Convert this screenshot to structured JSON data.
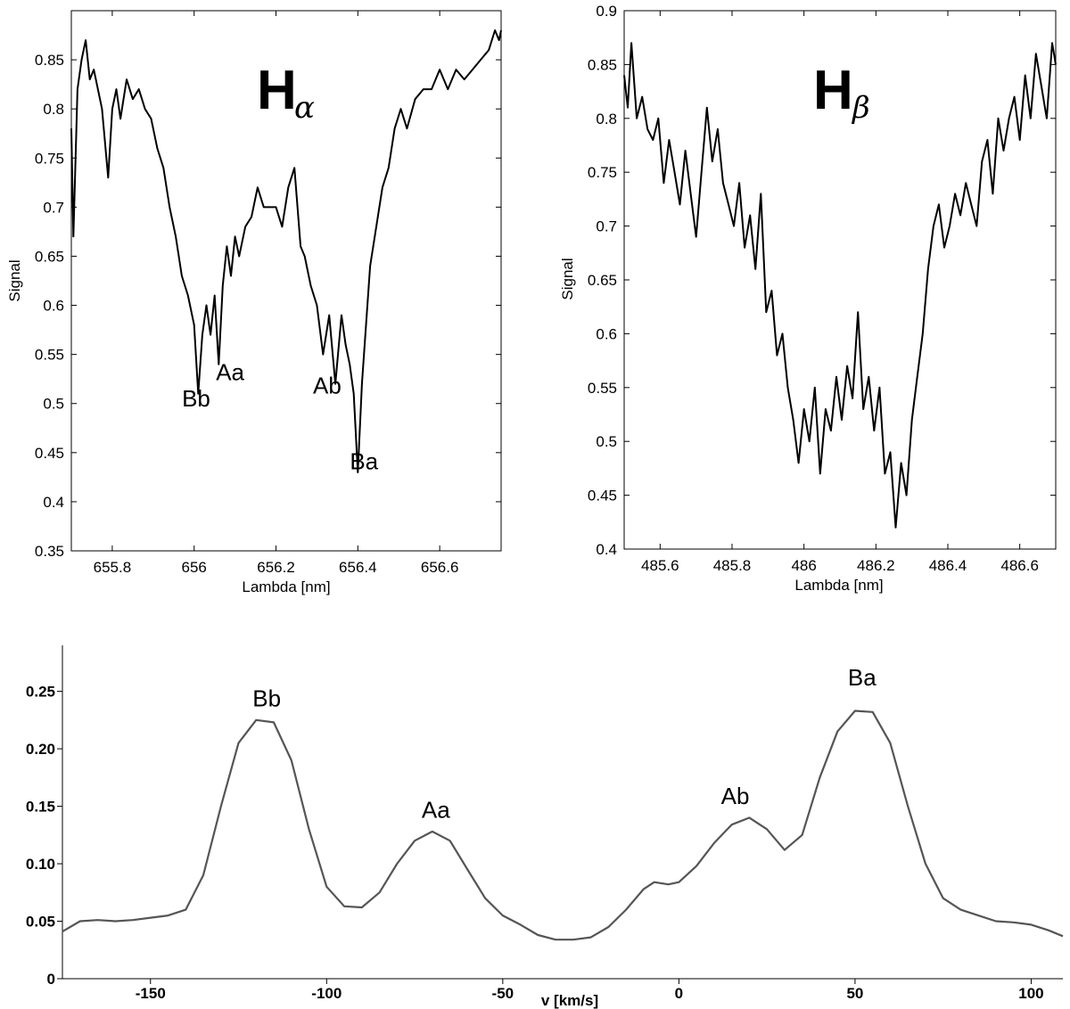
{
  "chart_data": [
    {
      "type": "line",
      "title_main": "H",
      "title_sub": "α",
      "xlabel": "Lambda [nm]",
      "ylabel": "Signal",
      "xlim": [
        655.7,
        656.75
      ],
      "ylim": [
        0.35,
        0.9
      ],
      "xticks": [
        655.8,
        656,
        656.2,
        656.4,
        656.6
      ],
      "xtick_labels": [
        "655.8",
        "656",
        "656.2",
        "656.4",
        "656.6"
      ],
      "yticks": [
        0.35,
        0.4,
        0.45,
        0.5,
        0.55,
        0.6,
        0.65,
        0.7,
        0.75,
        0.8,
        0.85
      ],
      "ytick_labels": [
        "0.35",
        "0.4",
        "0.45",
        "0.5",
        "0.55",
        "0.6",
        "0.65",
        "0.7",
        "0.75",
        "0.8",
        "0.85"
      ],
      "series": [
        {
          "x": [
            655.7,
            655.705,
            655.715,
            655.725,
            655.735,
            655.745,
            655.755,
            655.765,
            655.775,
            655.79,
            655.8,
            655.81,
            655.82,
            655.835,
            655.85,
            655.865,
            655.88,
            655.895,
            655.91,
            655.925,
            655.94,
            655.955,
            655.97,
            655.985,
            656.0,
            656.01,
            656.02,
            656.03,
            656.04,
            656.05,
            656.06,
            656.07,
            656.08,
            656.09,
            656.1,
            656.11,
            656.125,
            656.14,
            656.155,
            656.17,
            656.185,
            656.2,
            656.215,
            656.23,
            656.245,
            656.26,
            656.27,
            656.285,
            656.3,
            656.315,
            656.33,
            656.345,
            656.36,
            656.37,
            656.38,
            656.39,
            656.4,
            656.41,
            656.42,
            656.43,
            656.445,
            656.46,
            656.475,
            656.49,
            656.505,
            656.52,
            656.54,
            656.56,
            656.58,
            656.6,
            656.62,
            656.64,
            656.66,
            656.68,
            656.7,
            656.72,
            656.735,
            656.745,
            656.75
          ],
          "y": [
            0.78,
            0.67,
            0.82,
            0.85,
            0.87,
            0.83,
            0.84,
            0.82,
            0.8,
            0.73,
            0.8,
            0.82,
            0.79,
            0.83,
            0.81,
            0.82,
            0.8,
            0.79,
            0.76,
            0.74,
            0.7,
            0.67,
            0.63,
            0.61,
            0.58,
            0.51,
            0.57,
            0.6,
            0.57,
            0.61,
            0.54,
            0.62,
            0.66,
            0.63,
            0.67,
            0.65,
            0.68,
            0.69,
            0.72,
            0.7,
            0.7,
            0.7,
            0.68,
            0.72,
            0.74,
            0.66,
            0.65,
            0.62,
            0.6,
            0.55,
            0.59,
            0.52,
            0.59,
            0.56,
            0.54,
            0.51,
            0.43,
            0.52,
            0.58,
            0.64,
            0.68,
            0.72,
            0.74,
            0.78,
            0.8,
            0.78,
            0.81,
            0.82,
            0.82,
            0.84,
            0.82,
            0.84,
            0.83,
            0.84,
            0.85,
            0.86,
            0.88,
            0.87,
            0.88
          ]
        }
      ],
      "annotations": [
        {
          "text": "Bb",
          "x": 656.005,
          "y": 0.497
        },
        {
          "text": "Aa",
          "x": 656.088,
          "y": 0.524
        },
        {
          "text": "Ab",
          "x": 656.325,
          "y": 0.51
        },
        {
          "text": "Ba",
          "x": 656.415,
          "y": 0.433
        }
      ]
    },
    {
      "type": "line",
      "title_main": "H",
      "title_sub": "β",
      "xlabel": "Lambda [nm]",
      "ylabel": "Signal",
      "xlim": [
        485.5,
        486.7
      ],
      "ylim": [
        0.4,
        0.9
      ],
      "xticks": [
        485.6,
        485.8,
        486,
        486.2,
        486.4,
        486.6
      ],
      "xtick_labels": [
        "485.6",
        "485.8",
        "486",
        "486.2",
        "486.4",
        "486.6"
      ],
      "yticks": [
        0.4,
        0.45,
        0.5,
        0.55,
        0.6,
        0.65,
        0.7,
        0.75,
        0.8,
        0.85,
        0.9
      ],
      "ytick_labels": [
        "0.4",
        "0.45",
        "0.5",
        "0.55",
        "0.6",
        "0.65",
        "0.7",
        "0.75",
        "0.8",
        "0.85",
        "0.9"
      ],
      "series": [
        {
          "x": [
            485.5,
            485.51,
            485.52,
            485.535,
            485.55,
            485.565,
            485.58,
            485.595,
            485.61,
            485.625,
            485.64,
            485.655,
            485.67,
            485.685,
            485.7,
            485.715,
            485.73,
            485.745,
            485.76,
            485.775,
            485.79,
            485.805,
            485.82,
            485.835,
            485.85,
            485.865,
            485.88,
            485.895,
            485.91,
            485.925,
            485.94,
            485.955,
            485.97,
            485.985,
            486.0,
            486.015,
            486.03,
            486.045,
            486.06,
            486.075,
            486.09,
            486.105,
            486.12,
            486.135,
            486.15,
            486.165,
            486.18,
            486.195,
            486.21,
            486.225,
            486.24,
            486.255,
            486.27,
            486.285,
            486.3,
            486.315,
            486.33,
            486.345,
            486.36,
            486.375,
            486.39,
            486.405,
            486.42,
            486.435,
            486.45,
            486.465,
            486.48,
            486.495,
            486.51,
            486.525,
            486.54,
            486.555,
            486.57,
            486.585,
            486.6,
            486.615,
            486.63,
            486.645,
            486.66,
            486.675,
            486.69,
            486.7
          ],
          "y": [
            0.84,
            0.81,
            0.87,
            0.8,
            0.82,
            0.79,
            0.78,
            0.8,
            0.74,
            0.78,
            0.75,
            0.72,
            0.77,
            0.73,
            0.69,
            0.75,
            0.81,
            0.76,
            0.79,
            0.74,
            0.72,
            0.7,
            0.74,
            0.68,
            0.71,
            0.66,
            0.73,
            0.62,
            0.64,
            0.58,
            0.6,
            0.55,
            0.52,
            0.48,
            0.53,
            0.5,
            0.55,
            0.47,
            0.53,
            0.51,
            0.56,
            0.52,
            0.57,
            0.54,
            0.62,
            0.53,
            0.56,
            0.51,
            0.55,
            0.47,
            0.49,
            0.42,
            0.48,
            0.45,
            0.52,
            0.56,
            0.6,
            0.66,
            0.7,
            0.72,
            0.68,
            0.7,
            0.73,
            0.71,
            0.74,
            0.72,
            0.7,
            0.76,
            0.78,
            0.73,
            0.8,
            0.77,
            0.8,
            0.82,
            0.78,
            0.84,
            0.8,
            0.86,
            0.83,
            0.8,
            0.87,
            0.85
          ]
        }
      ]
    },
    {
      "type": "line",
      "xlabel": "v [km/s]",
      "xlim": [
        -175,
        109
      ],
      "ylim": [
        0,
        0.29
      ],
      "xticks": [
        -150,
        -100,
        -50,
        0,
        50,
        100
      ],
      "xtick_labels": [
        "-150",
        "-100",
        "-50",
        "0",
        "50",
        "100"
      ],
      "yticks": [
        0,
        0.05,
        0.1,
        0.15,
        0.2,
        0.25
      ],
      "ytick_labels": [
        "0",
        "0.05",
        "0.10",
        "0.15",
        "0.20",
        "0.25"
      ],
      "series": [
        {
          "x": [
            -175,
            -170,
            -165,
            -160,
            -155,
            -150,
            -145,
            -140,
            -135,
            -130,
            -125,
            -120,
            -115,
            -110,
            -105,
            -100,
            -95,
            -90,
            -85,
            -80,
            -75,
            -70,
            -65,
            -60,
            -55,
            -50,
            -45,
            -40,
            -35,
            -30,
            -25,
            -20,
            -15,
            -10,
            -7,
            -3,
            0,
            5,
            10,
            15,
            20,
            25,
            30,
            35,
            40,
            45,
            50,
            55,
            60,
            65,
            70,
            75,
            80,
            85,
            90,
            95,
            100,
            105,
            109
          ],
          "y": [
            0.041,
            0.05,
            0.051,
            0.05,
            0.051,
            0.053,
            0.055,
            0.06,
            0.09,
            0.15,
            0.205,
            0.225,
            0.223,
            0.19,
            0.13,
            0.08,
            0.063,
            0.062,
            0.075,
            0.1,
            0.12,
            0.128,
            0.12,
            0.095,
            0.07,
            0.055,
            0.047,
            0.038,
            0.034,
            0.034,
            0.036,
            0.045,
            0.06,
            0.078,
            0.084,
            0.082,
            0.084,
            0.098,
            0.118,
            0.134,
            0.14,
            0.13,
            0.112,
            0.125,
            0.175,
            0.215,
            0.233,
            0.232,
            0.205,
            0.15,
            0.1,
            0.07,
            0.06,
            0.055,
            0.05,
            0.049,
            0.047,
            0.042,
            0.037
          ]
        }
      ],
      "annotations": [
        {
          "text": "Bb",
          "x": -117,
          "y": 0.237
        },
        {
          "text": "Aa",
          "x": -69,
          "y": 0.14
        },
        {
          "text": "Ab",
          "x": 16,
          "y": 0.152
        },
        {
          "text": "Ba",
          "x": 52,
          "y": 0.255
        }
      ]
    }
  ]
}
